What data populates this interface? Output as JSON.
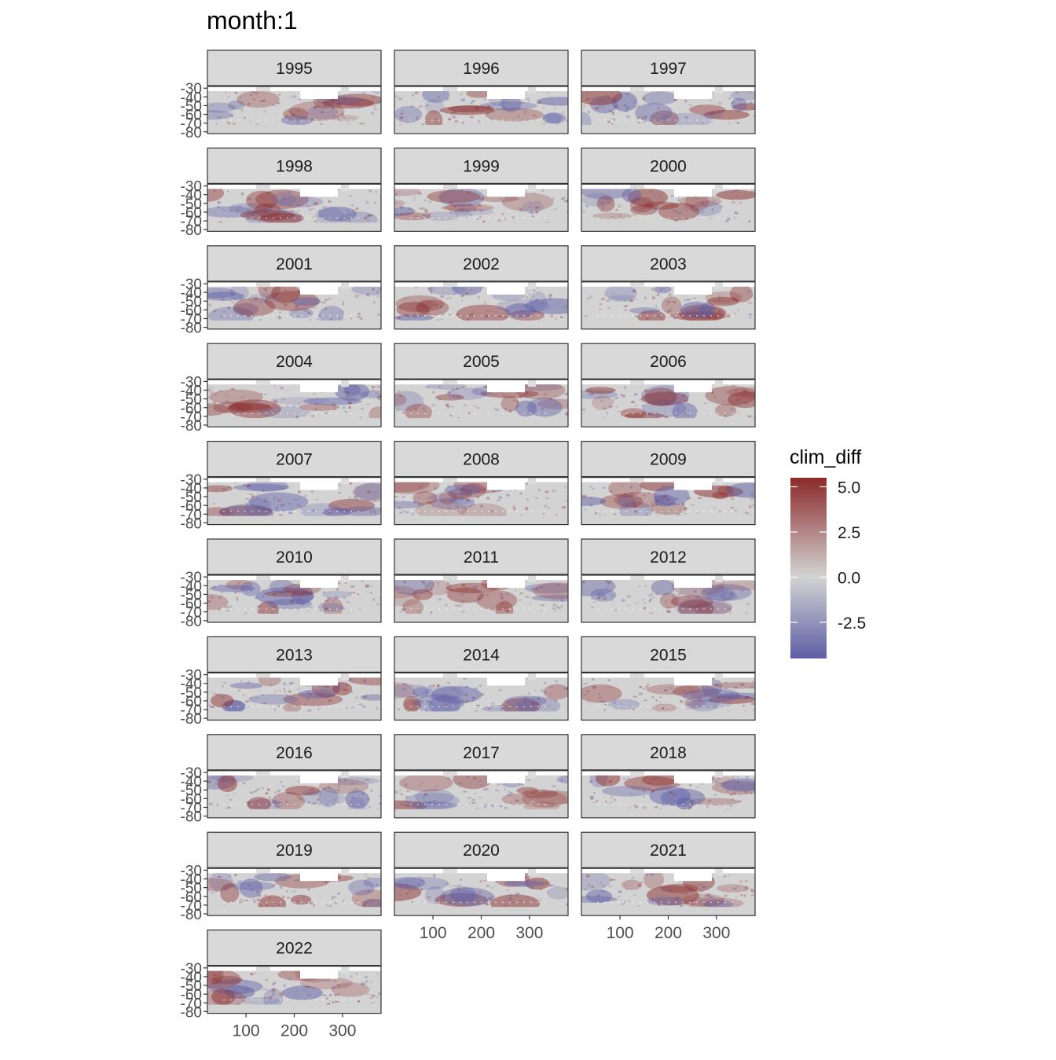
{
  "chart_data": {
    "type": "heatmap",
    "title": "month:1",
    "facet_variable": "year",
    "facets": [
      "1995",
      "1996",
      "1997",
      "1998",
      "1999",
      "2000",
      "2001",
      "2002",
      "2003",
      "2004",
      "2005",
      "2006",
      "2007",
      "2008",
      "2009",
      "2010",
      "2011",
      "2012",
      "2013",
      "2014",
      "2015",
      "2016",
      "2017",
      "2018",
      "2019",
      "2020",
      "2021",
      "2022"
    ],
    "x_ticks": [
      "100",
      "200",
      "300"
    ],
    "y_ticks": [
      "-30",
      "-40",
      "-50",
      "-60",
      "-70",
      "-80"
    ],
    "xlim": [
      20,
      380
    ],
    "ylim": [
      -82,
      -28
    ],
    "legend": {
      "title": "clim_diff",
      "placement": "right",
      "ticks": [
        "5.0",
        "2.5",
        "0.0",
        "-2.5"
      ],
      "range": [
        -4.5,
        5.5
      ],
      "colors": {
        "low": "#5e5ea6",
        "mid": "#d3d3d3",
        "high": "#8b2a2a"
      }
    },
    "colors": {
      "strip_fill": "#d9d9d9",
      "panel_border": "#333333",
      "land_fill": "#ffffff",
      "ocean_fill": "#d3d3d3"
    }
  }
}
